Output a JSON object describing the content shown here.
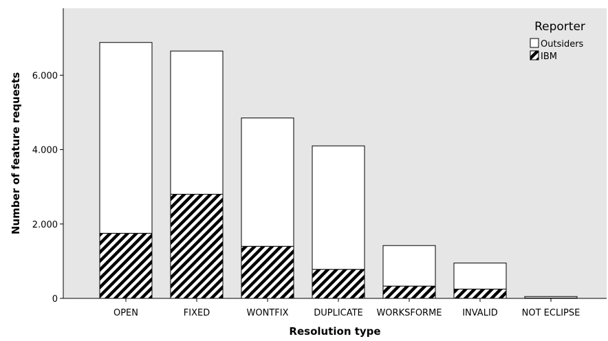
{
  "chart_data": {
    "type": "bar",
    "stacked": true,
    "title": "",
    "xlabel": "Resolution type",
    "ylabel": "Number of feature requests",
    "categories": [
      "OPEN",
      "FIXED",
      "WONTFIX",
      "DUPLICATE",
      "WORKSFORME",
      "INVALID",
      "NOT ECLIPSE"
    ],
    "series": [
      {
        "name": "IBM",
        "values": [
          1750,
          2800,
          1400,
          780,
          330,
          250,
          10
        ],
        "fill": "hatched"
      },
      {
        "name": "Outsiders",
        "values": [
          5130,
          3850,
          3450,
          3320,
          1090,
          700,
          40
        ],
        "fill": "white"
      }
    ],
    "ylim": [
      0,
      7800
    ],
    "y_ticks": [
      0,
      2000,
      4000,
      6000
    ],
    "y_tick_labels": [
      "0",
      "2.000",
      "4.000",
      "6.000"
    ],
    "grid": false,
    "legend": {
      "title": "Reporter",
      "placement": "top-right",
      "entries": [
        "Outsiders",
        "IBM"
      ]
    },
    "colors": {
      "plot_background": "#e6e6e6",
      "bar_fill": "#ffffff",
      "bar_stroke": "#000000",
      "hatch": "#000000"
    }
  }
}
